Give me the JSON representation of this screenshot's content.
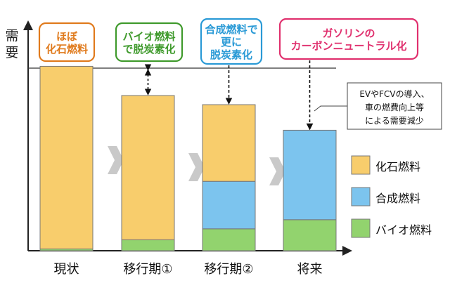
{
  "chart_data": {
    "type": "bar",
    "stacked": true,
    "ylabel": "需要",
    "categories": [
      "現状",
      "移行期①",
      "移行期②",
      "将来"
    ],
    "series": [
      {
        "name": "バイオ燃料",
        "color": "#92d36e",
        "values": [
          1,
          6,
          12,
          17
        ]
      },
      {
        "name": "合成燃料",
        "color": "#7cc4ee",
        "values": [
          0,
          0,
          26,
          49
        ]
      },
      {
        "name": "化石燃料",
        "color": "#f8cd6c",
        "values": [
          100,
          79,
          42,
          0
        ]
      }
    ],
    "reference_line": {
      "value": 100
    },
    "ylim": [
      0,
      120
    ],
    "grid": false,
    "legend_position": "right",
    "callouts": [
      {
        "text": [
          "ほぼ",
          "化石燃料"
        ],
        "color": "#e07a1c"
      },
      {
        "text": [
          "バイオ燃料",
          "で脱炭素化"
        ],
        "color": "#3f9a2c"
      },
      {
        "text": [
          "合成燃料で",
          "更に",
          "脱炭素化"
        ],
        "color": "#2a9ad6"
      },
      {
        "text": [
          "ガソリンの",
          "カーボンニュートラル化"
        ],
        "color": "#e0306e"
      }
    ],
    "annotation": [
      "EVやFCVの導入、",
      "車の燃費向上等",
      "による需要減少"
    ]
  }
}
